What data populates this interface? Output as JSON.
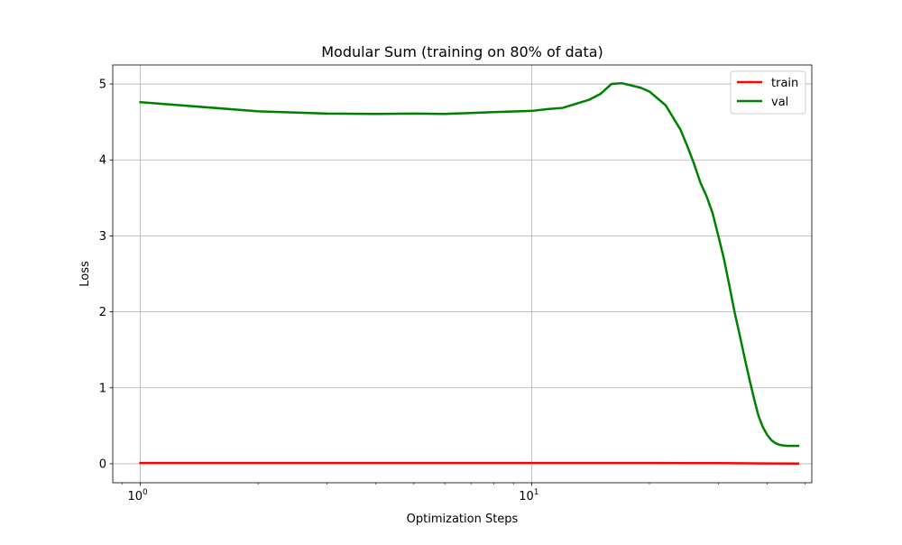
{
  "chart_data": {
    "type": "line",
    "title": "Modular Sum (training on 80% of data)",
    "xlabel": "Optimization Steps",
    "ylabel": "Loss",
    "xscale": "log",
    "xlim": [
      0.85,
      52
    ],
    "ylim": [
      -0.25,
      5.25
    ],
    "grid": true,
    "legend_position": "top-right",
    "x_ticks": [
      {
        "value": 1,
        "base": "10",
        "exp": "0"
      },
      {
        "value": 10,
        "base": "10",
        "exp": "1"
      }
    ],
    "y_ticks": [
      0,
      1,
      2,
      3,
      4,
      5
    ],
    "series": [
      {
        "name": "train",
        "color": "#ff0000",
        "x": [
          1,
          2,
          3,
          5,
          10,
          20,
          30,
          40,
          48
        ],
        "values": [
          0.01,
          0.01,
          0.01,
          0.01,
          0.01,
          0.01,
          0.008,
          0.004,
          0.002
        ]
      },
      {
        "name": "val",
        "color": "#008000",
        "x": [
          1,
          2,
          3,
          4,
          5,
          6,
          8,
          10,
          11,
          12,
          13,
          14,
          15,
          16,
          17,
          18,
          19,
          20,
          22,
          24,
          25,
          26,
          27,
          28,
          29,
          30,
          31,
          32,
          33,
          34,
          35,
          36,
          37,
          38,
          39,
          40,
          41,
          42,
          43,
          44,
          45,
          46,
          47,
          48
        ],
        "values": [
          4.76,
          4.64,
          4.61,
          4.605,
          4.61,
          4.605,
          4.63,
          4.645,
          4.67,
          4.685,
          4.74,
          4.79,
          4.87,
          5.0,
          5.01,
          4.98,
          4.95,
          4.9,
          4.72,
          4.4,
          4.18,
          3.95,
          3.7,
          3.52,
          3.3,
          3.0,
          2.7,
          2.35,
          2.0,
          1.7,
          1.4,
          1.12,
          0.86,
          0.63,
          0.48,
          0.38,
          0.31,
          0.27,
          0.25,
          0.24,
          0.235,
          0.235,
          0.235,
          0.235
        ]
      }
    ]
  }
}
